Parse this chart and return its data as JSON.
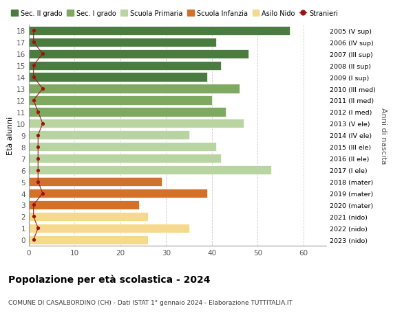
{
  "ages": [
    18,
    17,
    16,
    15,
    14,
    13,
    12,
    11,
    10,
    9,
    8,
    7,
    6,
    5,
    4,
    3,
    2,
    1,
    0
  ],
  "values": [
    57,
    41,
    48,
    42,
    39,
    46,
    40,
    43,
    47,
    35,
    41,
    42,
    53,
    29,
    39,
    24,
    26,
    35,
    26
  ],
  "stranieri": [
    1,
    1,
    3,
    1,
    1,
    3,
    1,
    2,
    3,
    2,
    2,
    2,
    2,
    2,
    3,
    1,
    1,
    2,
    1
  ],
  "right_labels": [
    "2005 (V sup)",
    "2006 (IV sup)",
    "2007 (III sup)",
    "2008 (II sup)",
    "2009 (I sup)",
    "2010 (III med)",
    "2011 (II med)",
    "2012 (I med)",
    "2013 (V ele)",
    "2014 (IV ele)",
    "2015 (III ele)",
    "2016 (II ele)",
    "2017 (I ele)",
    "2018 (mater)",
    "2019 (mater)",
    "2020 (mater)",
    "2021 (nido)",
    "2022 (nido)",
    "2023 (nido)"
  ],
  "bar_colors": [
    "#4a7c3f",
    "#4a7c3f",
    "#4a7c3f",
    "#4a7c3f",
    "#4a7c3f",
    "#7fa861",
    "#7fa861",
    "#7fa861",
    "#b8d4a0",
    "#b8d4a0",
    "#b8d4a0",
    "#b8d4a0",
    "#b8d4a0",
    "#d2722a",
    "#d2722a",
    "#d2722a",
    "#f5d98c",
    "#f5d98c",
    "#f5d98c"
  ],
  "legend_labels": [
    "Sec. II grado",
    "Sec. I grado",
    "Scuola Primaria",
    "Scuola Infanzia",
    "Asilo Nido",
    "Stranieri"
  ],
  "legend_colors": [
    "#4a7c3f",
    "#7fa861",
    "#b8d4a0",
    "#d2722a",
    "#f5d98c",
    "#a01010"
  ],
  "title": "Popolazione per età scolastica - 2024",
  "subtitle": "COMUNE DI CASALBORDINO (CH) - Dati ISTAT 1° gennaio 2024 - Elaborazione TUTTITALIA.IT",
  "ylabel_left": "Età alunni",
  "ylabel_right": "Anni di nascita",
  "xlim": [
    0,
    65
  ],
  "xticks": [
    0,
    10,
    20,
    30,
    40,
    50,
    60
  ],
  "stranieri_color": "#a01010",
  "bg_color": "#ffffff",
  "bar_height": 0.78
}
